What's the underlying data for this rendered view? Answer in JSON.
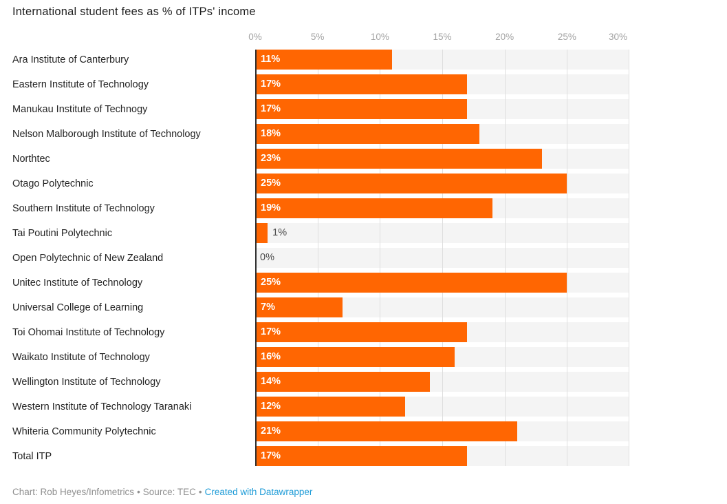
{
  "title": "International student fees as % of ITPs' income",
  "axis": {
    "tick_values": [
      0,
      5,
      10,
      15,
      20,
      25,
      30
    ],
    "tick_labels": [
      "0%",
      "5%",
      "10%",
      "15%",
      "20%",
      "25%",
      "30%"
    ]
  },
  "chart_data": {
    "type": "bar",
    "orientation": "horizontal",
    "title": "International student fees as % of ITPs' income",
    "unit": "%",
    "xlim": [
      0,
      30
    ],
    "grid": true,
    "legend": "none",
    "categories": [
      "Ara Institute of Canterbury",
      "Eastern Institute of Technology",
      "Manukau Institute of Technogy",
      "Nelson Malborough Institute of Technology",
      "Northtec",
      "Otago Polytechnic",
      "Southern Institute of Technology",
      "Tai Poutini Polytechnic",
      "Open Polytechnic of New Zealand",
      "Unitec Institute of Technology",
      "Universal College of Learning",
      "Toi Ohomai Institute of Technology",
      "Waikato Institute of Technology",
      "Wellington Institute of Technology",
      "Western Institute of Technology Taranaki",
      "Whiteria Community Polytechnic",
      "Total ITP"
    ],
    "values": [
      11,
      17,
      17,
      18,
      23,
      25,
      19,
      1,
      0,
      25,
      7,
      17,
      16,
      14,
      12,
      21,
      17
    ],
    "value_labels": [
      "11%",
      "17%",
      "17%",
      "18%",
      "23%",
      "25%",
      "19%",
      "1%",
      "0%",
      "25%",
      "7%",
      "17%",
      "16%",
      "14%",
      "12%",
      "21%",
      "17%"
    ]
  },
  "colors": {
    "bar": "#ff6602",
    "row_background": "#f4f4f4",
    "gridline": "#dedede",
    "axis_line": "#2e2e2e",
    "tick_label": "#a2a2a2",
    "category_label": "#242424",
    "value_label_inside": "#ffffff",
    "value_label_outside": "#4a4a4a",
    "title": "#1f1f1f",
    "footer_text": "#8f8f8f",
    "link": "#1d9bd7"
  },
  "footer": {
    "credit": "Chart: Rob Heyes/Infometrics",
    "separator": "•",
    "source": "Source: TEC",
    "link_label": "Created with Datawrapper"
  }
}
